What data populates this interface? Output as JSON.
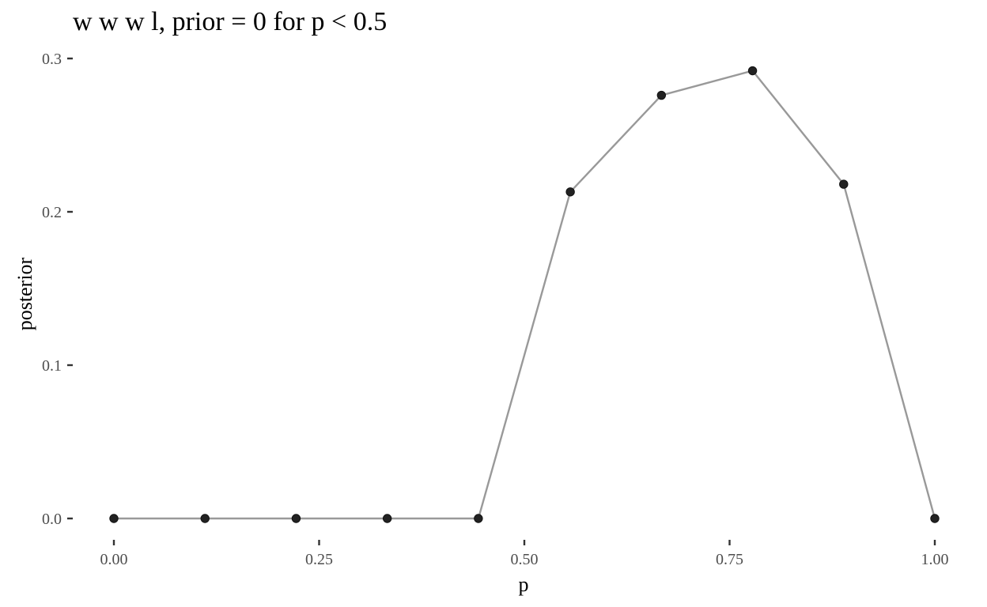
{
  "chart_data": {
    "type": "line",
    "title": "w w w l, prior = 0 for p < 0.5",
    "xlabel": "p",
    "ylabel": "posterior",
    "xlim": [
      0,
      1
    ],
    "ylim": [
      0,
      0.3
    ],
    "x_ticks": [
      0,
      0.25,
      0.5,
      0.75,
      1
    ],
    "x_tick_labels": [
      "0.00",
      "0.25",
      "0.50",
      "0.75",
      "1.00"
    ],
    "y_ticks": [
      0,
      0.1,
      0.2,
      0.3
    ],
    "y_tick_labels": [
      "0.0",
      "0.1",
      "0.2",
      "0.3"
    ],
    "grid": false,
    "legend": "none",
    "line_color": "#999999",
    "point_color": "#222222",
    "series": [
      {
        "x": [
          0.0,
          0.111,
          0.222,
          0.333,
          0.444,
          0.556,
          0.667,
          0.778,
          0.889,
          1.0
        ],
        "y": [
          0.0,
          0.0,
          0.0,
          0.0,
          0.0,
          0.213,
          0.276,
          0.292,
          0.218,
          0.0
        ]
      }
    ]
  }
}
